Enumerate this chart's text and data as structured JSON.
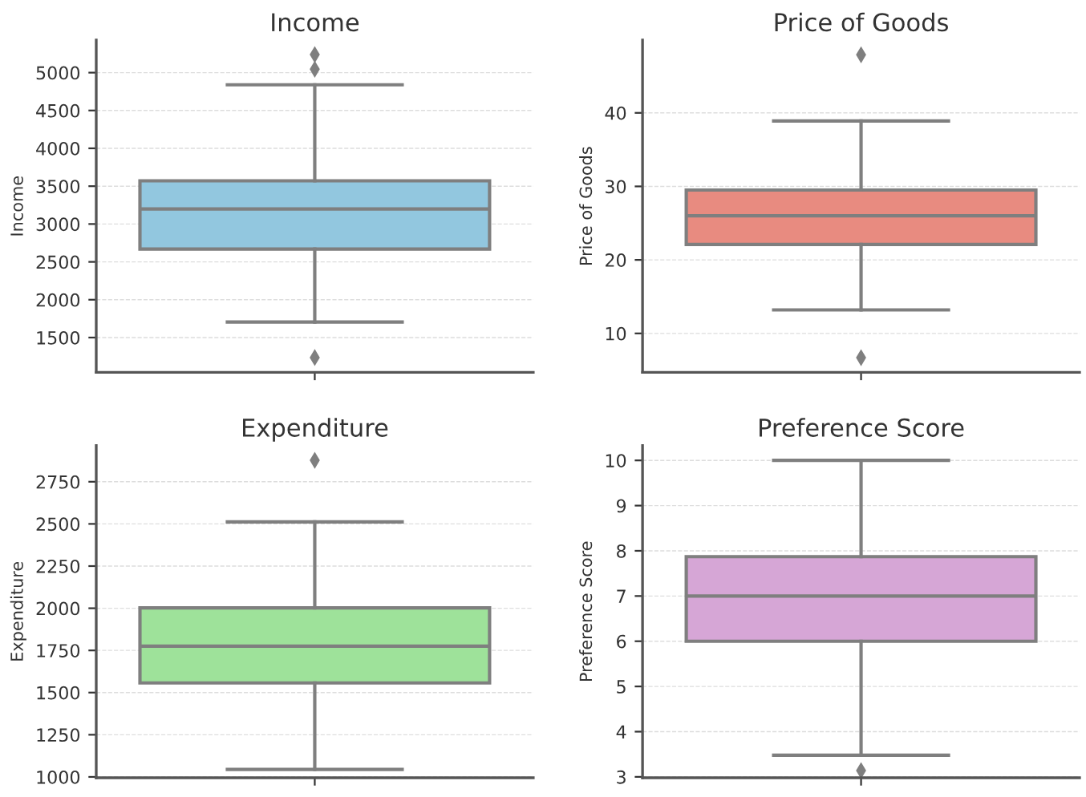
{
  "chart_data": [
    {
      "type": "box",
      "title": "Income",
      "ylabel": "Income",
      "categories": [
        null
      ],
      "color": "#92c7df",
      "boxes": [
        {
          "low": 1706,
          "q1": 2670,
          "median": 3198,
          "q3": 3571,
          "high": 4839,
          "outliers": [
            5238,
            5045,
            1236
          ]
        }
      ],
      "ylim": [
        1040,
        5430
      ],
      "yticks": [
        1500,
        2000,
        2500,
        3000,
        3500,
        4000,
        4500,
        5000
      ],
      "grid": "y",
      "tick_labels": "y",
      "marker": "diamond"
    },
    {
      "type": "box",
      "title": "Price of Goods",
      "ylabel": "Price of Goods",
      "categories": [
        null
      ],
      "color": "#e88b80",
      "boxes": [
        {
          "low": 13.2,
          "q1": 22.1,
          "median": 26.0,
          "q3": 29.5,
          "high": 38.9,
          "outliers": [
            47.9,
            6.7
          ]
        }
      ],
      "ylim": [
        4.7,
        49.9
      ],
      "yticks": [
        10,
        20,
        30,
        40
      ],
      "grid": "y",
      "tick_labels": "y",
      "marker": "diamond"
    },
    {
      "type": "box",
      "title": "Expenditure",
      "ylabel": "Expenditure",
      "categories": [
        null
      ],
      "color": "#9ee29a",
      "boxes": [
        {
          "low": 1044,
          "q1": 1557,
          "median": 1775,
          "q3": 2002,
          "high": 2512,
          "outliers": [
            2877
          ]
        }
      ],
      "ylim": [
        995,
        2965
      ],
      "yticks": [
        1000,
        1250,
        1500,
        1750,
        2000,
        2250,
        2500,
        2750
      ],
      "grid": "y",
      "tick_labels": "y",
      "marker": "diamond"
    },
    {
      "type": "box",
      "title": "Preference Score",
      "ylabel": "Preference Score",
      "categories": [
        null
      ],
      "color": "#d6a6d6",
      "boxes": [
        {
          "low": 3.48,
          "q1": 6.0,
          "median": 7.0,
          "q3": 7.87,
          "high": 10,
          "outliers": [
            3.14
          ]
        }
      ],
      "ylim": [
        2.98,
        10.33
      ],
      "yticks": [
        3,
        4,
        5,
        6,
        7,
        8,
        9,
        10
      ],
      "grid": "y",
      "tick_labels": "y",
      "marker": "diamond"
    }
  ]
}
